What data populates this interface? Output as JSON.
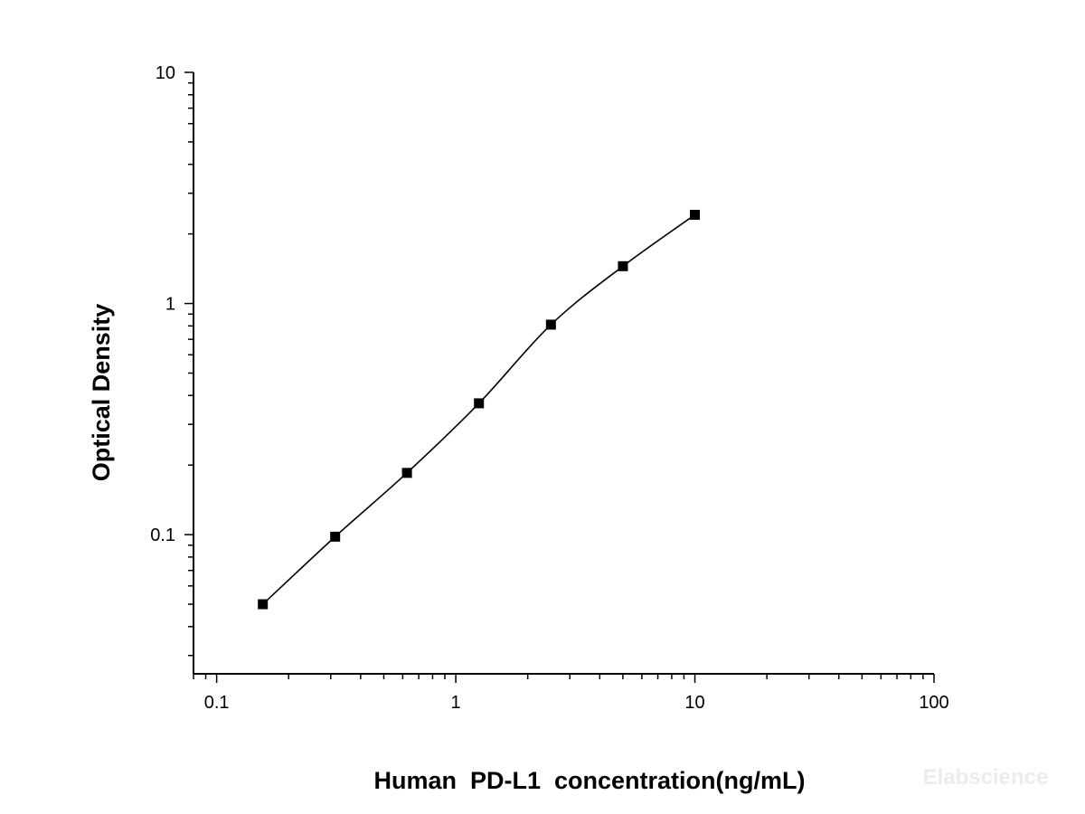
{
  "chart_data": {
    "type": "scatter",
    "xlabel": "Human  PD-L1  concentration(ng/mL)",
    "ylabel": "Optical Density",
    "x_scale": "log",
    "y_scale": "log",
    "xlim": [
      0.08,
      100
    ],
    "ylim": [
      0.025,
      10
    ],
    "x_ticks": [
      {
        "value": 0.1,
        "label": "0.1"
      },
      {
        "value": 1,
        "label": "1"
      },
      {
        "value": 10,
        "label": "10"
      },
      {
        "value": 100,
        "label": "100"
      }
    ],
    "y_ticks": [
      {
        "value": 0.1,
        "label": "0.1"
      },
      {
        "value": 1,
        "label": "1"
      },
      {
        "value": 10,
        "label": "10"
      }
    ],
    "grid": false,
    "series": [
      {
        "x": [
          0.156,
          0.313,
          0.625,
          1.25,
          2.5,
          5,
          10
        ],
        "y": [
          0.05,
          0.098,
          0.185,
          0.37,
          0.81,
          1.45,
          2.42
        ],
        "marker": "square",
        "color": "#000000",
        "fit_curve": true
      }
    ],
    "watermark": "Elabscience"
  }
}
